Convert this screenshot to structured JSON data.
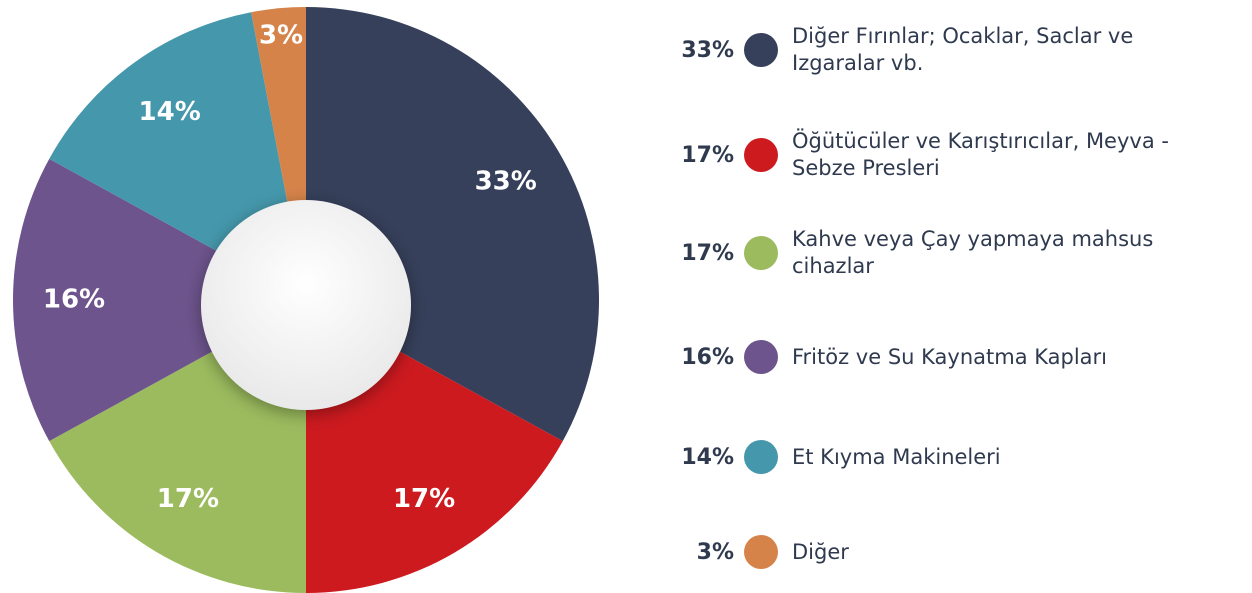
{
  "chart_data": {
    "type": "pie",
    "categories": [
      "Diğer Fırınlar; Ocaklar, Saclar ve Izgaralar vb.",
      "Öğütücüler ve Karıştırıcılar, Meyva -Sebze Presleri",
      "Kahve veya Çay yapmaya mahsus cihazlar",
      "Fritöz ve Su Kaynatma Kapları",
      "Et Kıyma Makineleri",
      "Diğer"
    ],
    "values": [
      33,
      17,
      17,
      16,
      14,
      3
    ],
    "value_labels": [
      "33%",
      "17%",
      "17%",
      "16%",
      "14%",
      "3%"
    ],
    "colors": [
      "#36405a",
      "#cc1a1f",
      "#9bbb5e",
      "#6d548c",
      "#4597ab",
      "#d6834a"
    ],
    "donut": true
  }
}
